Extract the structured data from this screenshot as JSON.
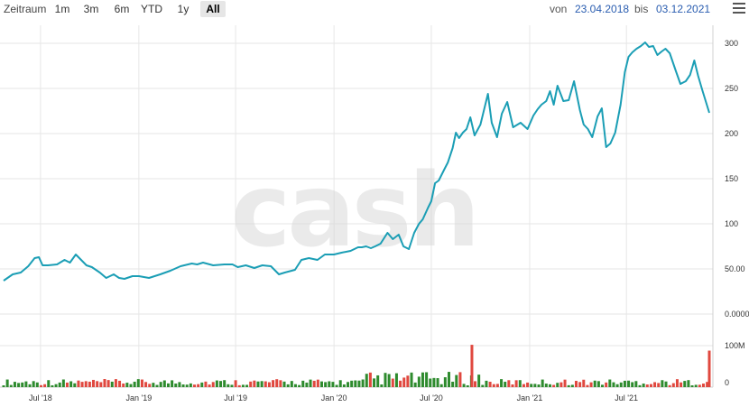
{
  "toolbar": {
    "zeitraum_label": "Zeitraum",
    "ranges": [
      "1m",
      "3m",
      "6m",
      "YTD",
      "1y",
      "All"
    ],
    "active_range": "All",
    "from_label": "von",
    "from_date": "23.04.2018",
    "to_label": "bis",
    "to_date": "03.12.2021",
    "menu_icon": "hamburger-menu-icon"
  },
  "watermark": "cash",
  "colors": {
    "line": "#1b9eb5",
    "volume_up": "#2e8b2e",
    "volume_down": "#e0483f"
  },
  "chart_data": {
    "type": "line",
    "price": {
      "x": [
        "2018-04-23",
        "2018-05-10",
        "2018-05-25",
        "2018-06-08",
        "2018-06-20",
        "2018-06-28",
        "2018-07-05",
        "2018-07-15",
        "2018-08-01",
        "2018-08-15",
        "2018-08-25",
        "2018-09-05",
        "2018-09-15",
        "2018-09-25",
        "2018-10-05",
        "2018-10-20",
        "2018-11-01",
        "2018-11-15",
        "2018-11-25",
        "2018-12-05",
        "2018-12-20",
        "2019-01-01",
        "2019-01-20",
        "2019-02-10",
        "2019-03-01",
        "2019-03-20",
        "2019-04-10",
        "2019-04-20",
        "2019-05-01",
        "2019-05-20",
        "2019-06-10",
        "2019-06-25",
        "2019-07-05",
        "2019-07-20",
        "2019-08-05",
        "2019-08-20",
        "2019-09-05",
        "2019-09-20",
        "2019-10-01",
        "2019-10-20",
        "2019-11-01",
        "2019-11-15",
        "2019-12-01",
        "2019-12-15",
        "2020-01-01",
        "2020-01-15",
        "2020-02-01",
        "2020-02-15",
        "2020-02-22",
        "2020-03-01",
        "2020-03-10",
        "2020-03-18",
        "2020-03-28",
        "2020-04-10",
        "2020-04-20",
        "2020-05-01",
        "2020-05-10",
        "2020-05-20",
        "2020-05-30",
        "2020-06-08",
        "2020-06-15",
        "2020-06-25",
        "2020-07-01",
        "2020-07-08",
        "2020-07-15",
        "2020-07-25",
        "2020-08-01",
        "2020-08-10",
        "2020-08-16",
        "2020-08-22",
        "2020-08-29",
        "2020-09-05",
        "2020-09-12",
        "2020-09-20",
        "2020-10-01",
        "2020-10-15",
        "2020-10-22",
        "2020-11-01",
        "2020-11-10",
        "2020-11-20",
        "2020-12-01",
        "2020-12-15",
        "2020-12-28",
        "2021-01-08",
        "2021-01-16",
        "2021-01-23",
        "2021-02-01",
        "2021-02-08",
        "2021-02-15",
        "2021-02-22",
        "2021-03-05",
        "2021-03-15",
        "2021-03-25",
        "2021-04-05",
        "2021-04-12",
        "2021-04-20",
        "2021-04-28",
        "2021-05-08",
        "2021-05-16",
        "2021-05-24",
        "2021-06-01",
        "2021-06-10",
        "2021-06-20",
        "2021-06-28",
        "2021-07-05",
        "2021-07-12",
        "2021-07-20",
        "2021-07-28",
        "2021-08-05",
        "2021-08-12",
        "2021-08-20",
        "2021-08-28",
        "2021-09-05",
        "2021-09-12",
        "2021-09-20",
        "2021-10-01",
        "2021-10-10",
        "2021-10-20",
        "2021-10-28",
        "2021-11-05",
        "2021-11-12",
        "2021-11-20",
        "2021-12-03"
      ],
      "y": [
        37,
        44,
        46,
        53,
        62,
        63,
        54,
        54,
        55,
        60,
        57,
        66,
        60,
        54,
        52,
        46,
        40,
        44,
        40,
        39,
        42,
        42,
        40,
        44,
        48,
        53,
        56,
        55,
        57,
        54,
        55,
        55,
        52,
        54,
        51,
        54,
        53,
        44,
        46,
        49,
        60,
        62,
        60,
        66,
        66,
        68,
        70,
        74,
        74,
        75,
        73,
        75,
        78,
        90,
        83,
        88,
        75,
        72,
        90,
        100,
        105,
        118,
        125,
        145,
        148,
        160,
        168,
        184,
        201,
        195,
        201,
        205,
        218,
        198,
        210,
        244,
        212,
        196,
        222,
        235,
        207,
        212,
        205,
        220,
        227,
        232,
        236,
        247,
        232,
        253,
        236,
        237,
        258,
        226,
        210,
        205,
        196,
        219,
        228,
        185,
        189,
        201,
        232,
        268,
        285,
        290,
        294,
        297,
        301,
        296,
        297,
        287,
        291,
        294,
        289,
        270,
        255,
        258,
        265,
        281,
        264,
        248,
        223
      ]
    },
    "volume": [
      {
        "date": "2020-09-15",
        "value": 102,
        "direction": "up"
      },
      {
        "date": "2021-12-03",
        "value": 88,
        "direction": "down"
      }
    ],
    "x_ticks": [
      "Jul '18",
      "Jan '19",
      "Jul '19",
      "Jan '20",
      "Jul '20",
      "Jan '21",
      "Jul '21"
    ],
    "y_ticks": [
      "300",
      "250",
      "200",
      "150",
      "100",
      "50.00",
      "0.0000"
    ],
    "y_ticks_volume": [
      "100M",
      "0"
    ],
    "ylim": [
      0,
      320
    ],
    "grid": true,
    "title": "",
    "xlabel": "",
    "ylabel": ""
  }
}
